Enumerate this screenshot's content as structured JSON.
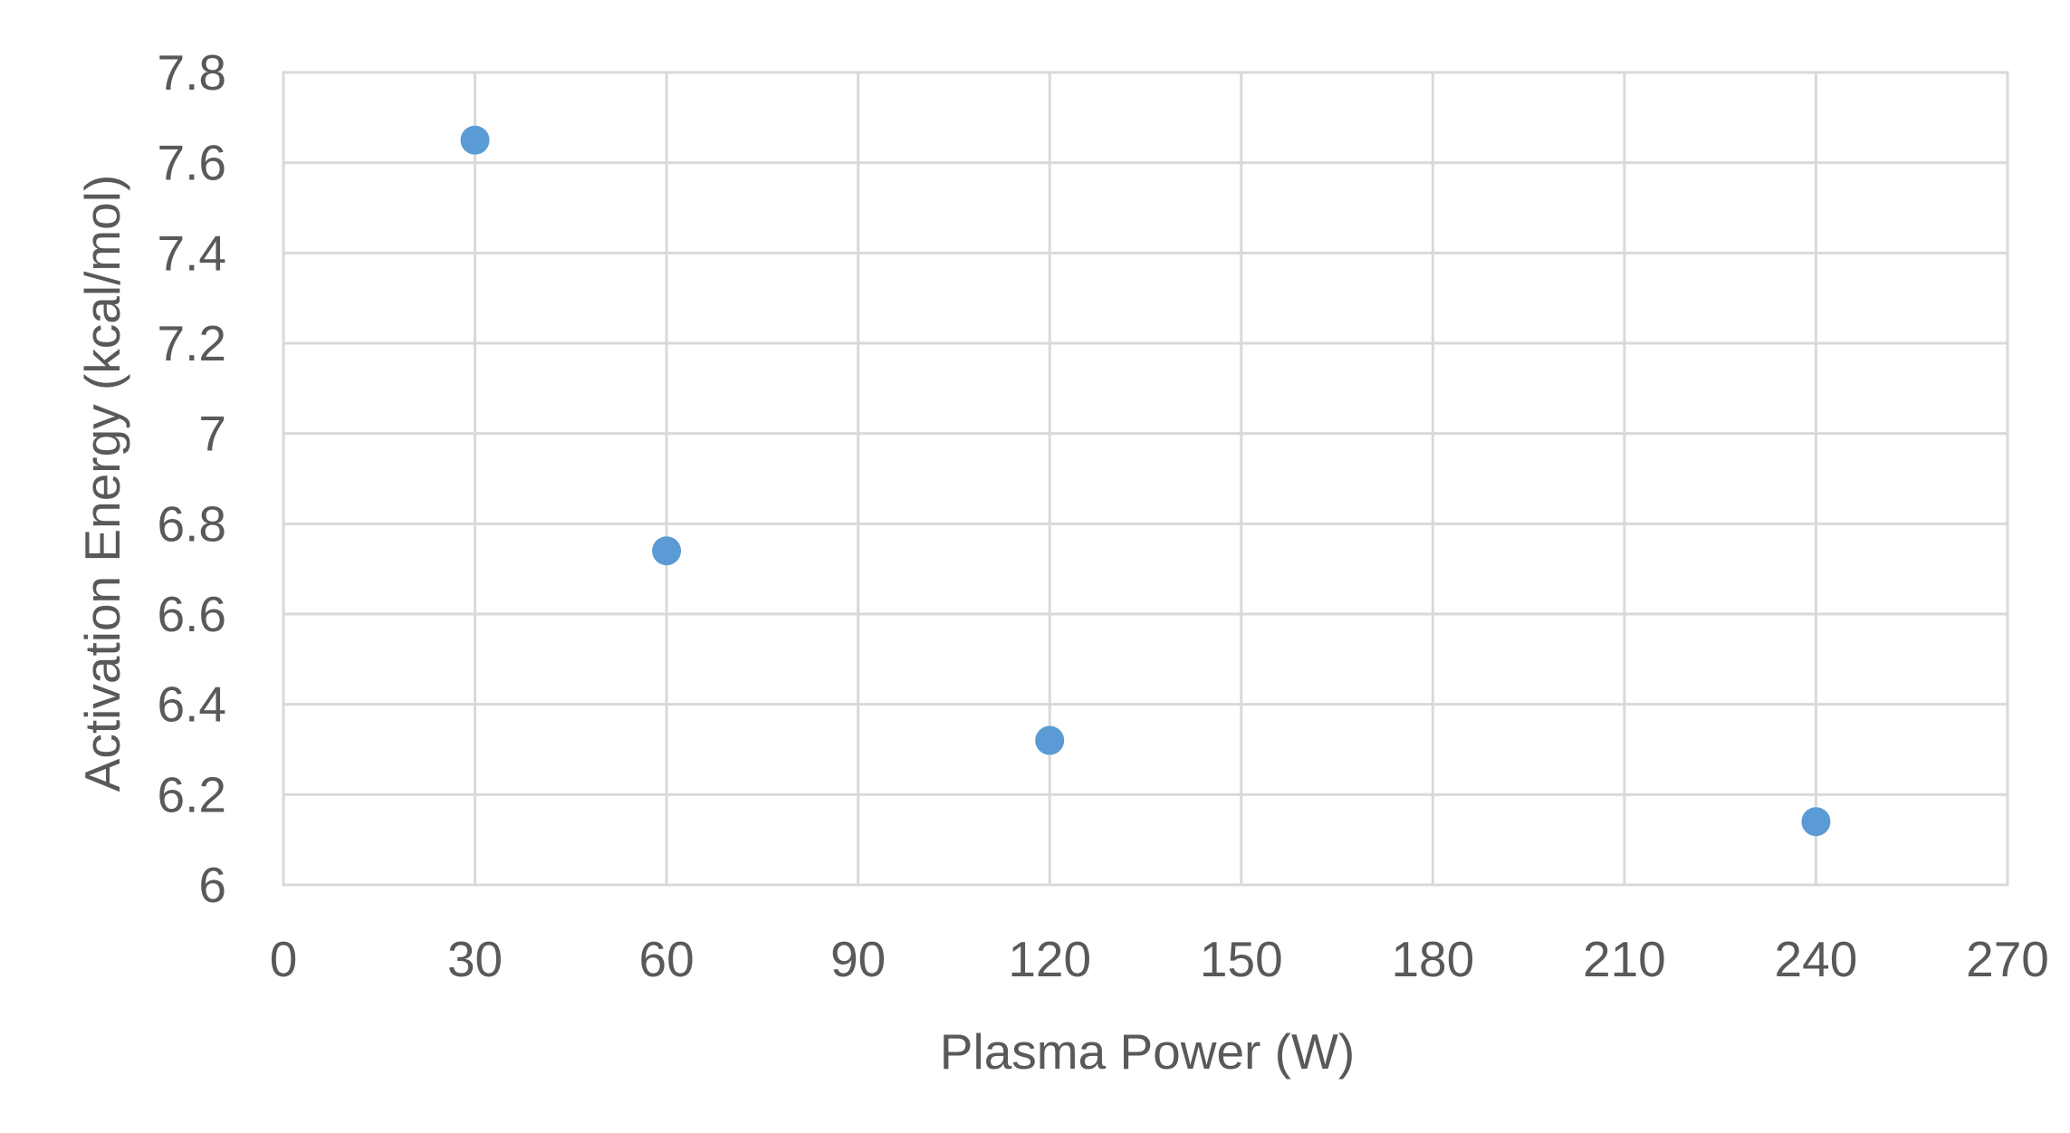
{
  "chart_data": {
    "type": "scatter",
    "title": "",
    "xlabel": "Plasma Power (W)",
    "ylabel": "Activation Energy (kcal/mol)",
    "xlim": [
      0,
      270
    ],
    "ylim": [
      6,
      7.8
    ],
    "x_ticks": [
      "0",
      "30",
      "60",
      "90",
      "120",
      "150",
      "180",
      "210",
      "240",
      "270"
    ],
    "y_ticks": [
      "6",
      "6.2",
      "6.4",
      "6.6",
      "6.8",
      "7",
      "7.2",
      "7.4",
      "7.6",
      "7.8"
    ],
    "x_tick_values": [
      0,
      30,
      60,
      90,
      120,
      150,
      180,
      210,
      240,
      270
    ],
    "y_tick_values": [
      6,
      6.2,
      6.4,
      6.6,
      6.8,
      7,
      7.2,
      7.4,
      7.6,
      7.8
    ],
    "grid": true,
    "legend": "none",
    "series": [
      {
        "color": "#5b9bd5",
        "points": [
          {
            "x": 30,
            "y": 7.65
          },
          {
            "x": 60,
            "y": 6.74
          },
          {
            "x": 120,
            "y": 6.32
          },
          {
            "x": 240,
            "y": 6.14
          }
        ]
      }
    ]
  }
}
